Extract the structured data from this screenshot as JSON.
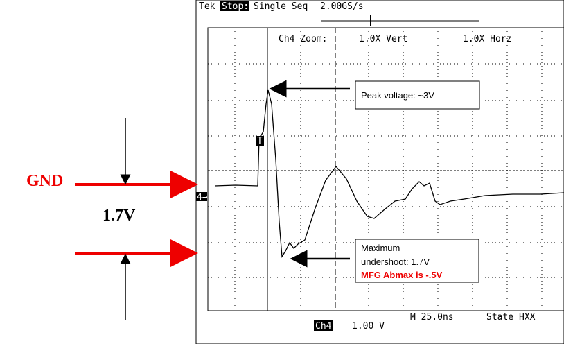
{
  "header": {
    "brand": "Tek",
    "status": "Stop:",
    "mode": "Single Seq",
    "rate": "2.00GS/s"
  },
  "zoom": {
    "label": "Ch4 Zoom:",
    "vert": "1.0X Vert",
    "horz": "1.0X Horz"
  },
  "annotations": {
    "peak": "Peak voltage: ~3V",
    "undershoot_line1": "Maximum",
    "undershoot_line2": "undershoot: 1.7V",
    "abmax": "MFG Abmax is -.5V",
    "gnd": "GND",
    "delta": "1.7V"
  },
  "markers": {
    "channel": "4→",
    "trigger": "T"
  },
  "footer": {
    "timebase": "M 25.0ns",
    "trigger_state": "State HXX",
    "channel": "Ch4",
    "scale": "1.00 V"
  }
}
